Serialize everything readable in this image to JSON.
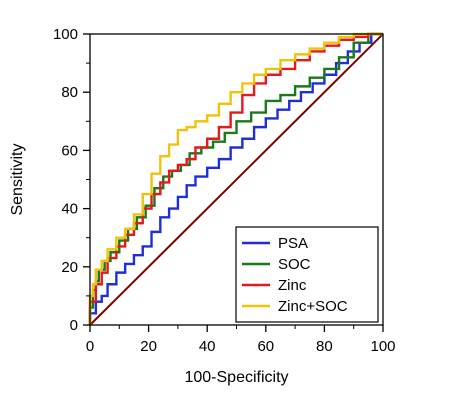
{
  "chart_data": {
    "type": "line",
    "title": "",
    "xlabel": "100-Specificity",
    "ylabel": "Sensitivity",
    "xlim": [
      0,
      100
    ],
    "ylim": [
      0,
      100
    ],
    "xticks": [
      0,
      20,
      40,
      60,
      80,
      100
    ],
    "yticks": [
      0,
      20,
      40,
      60,
      80,
      100
    ],
    "grid": false,
    "legend_position": "bottom-right",
    "reference_line": {
      "x": [
        0,
        100
      ],
      "y": [
        0,
        100
      ],
      "color": "#7b0000"
    },
    "series": [
      {
        "name": "PSA",
        "color": "#1f2fd6",
        "x": [
          0,
          2,
          4,
          6,
          9,
          12,
          15,
          18,
          21,
          24,
          27,
          30,
          33,
          36,
          40,
          44,
          48,
          52,
          56,
          60,
          64,
          68,
          72,
          76,
          80,
          84,
          88,
          92,
          96,
          100
        ],
        "y": [
          0,
          4,
          8,
          10,
          14,
          18,
          21,
          24,
          27,
          32,
          37,
          40,
          44,
          48,
          51,
          54,
          57,
          61,
          64,
          68,
          71,
          74,
          77,
          80,
          83,
          86,
          90,
          94,
          97,
          100
        ]
      },
      {
        "name": "SOC",
        "color": "#1a7a1a",
        "x": [
          0,
          1,
          2,
          3,
          5,
          7,
          10,
          13,
          16,
          19,
          22,
          25,
          28,
          31,
          34,
          38,
          42,
          46,
          50,
          55,
          60,
          65,
          70,
          75,
          80,
          85,
          90,
          95,
          100
        ],
        "y": [
          0,
          6,
          12,
          15,
          19,
          22,
          25,
          29,
          33,
          37,
          41,
          47,
          51,
          53,
          55,
          59,
          61,
          63,
          66,
          70,
          73,
          77,
          79,
          82,
          85,
          88,
          92,
          97,
          100
        ]
      },
      {
        "name": "Zinc",
        "color": "#e31a1c",
        "x": [
          0,
          2,
          4,
          6,
          9,
          12,
          15,
          18,
          21,
          24,
          27,
          30,
          33,
          36,
          40,
          44,
          48,
          52,
          56,
          60,
          65,
          70,
          75,
          80,
          85,
          90,
          95,
          100
        ],
        "y": [
          0,
          8,
          14,
          18,
          23,
          27,
          31,
          35,
          40,
          45,
          49,
          53,
          55,
          57,
          61,
          64,
          68,
          73,
          79,
          83,
          86,
          88,
          91,
          94,
          96,
          98,
          99,
          100
        ]
      },
      {
        "name": "Zinc+SOC",
        "color": "#f0c20a",
        "x": [
          0,
          1,
          2,
          4,
          6,
          9,
          12,
          15,
          18,
          21,
          24,
          27,
          30,
          33,
          36,
          40,
          44,
          48,
          52,
          56,
          60,
          65,
          70,
          75,
          80,
          85,
          90,
          95,
          100
        ],
        "y": [
          0,
          10,
          14,
          19,
          22,
          26,
          30,
          33,
          38,
          45,
          52,
          58,
          62,
          67,
          68,
          70,
          72,
          76,
          80,
          83,
          86,
          88,
          91,
          93,
          95,
          97,
          99,
          100,
          100
        ]
      }
    ]
  }
}
